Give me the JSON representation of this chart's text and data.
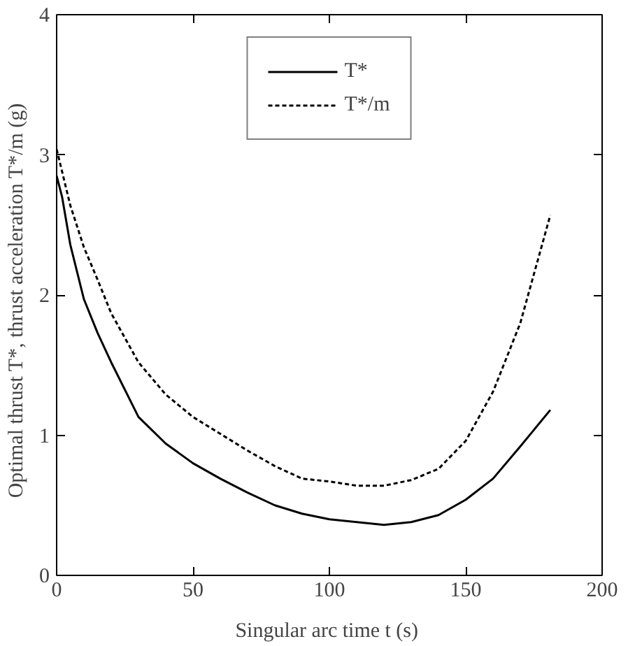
{
  "chart_data": {
    "type": "line",
    "xlabel": "Singular arc time  t (s)",
    "ylabel": "Optimal thrust  T*, thrust acceleration T*/m  (g)",
    "xlim": [
      0,
      200
    ],
    "xticks": [
      0,
      50,
      100,
      150,
      200
    ],
    "ylim": [
      0,
      4
    ],
    "yticks": [
      0,
      1,
      2,
      3,
      4
    ],
    "grid": false,
    "legend": "top",
    "marker": "none",
    "series": [
      {
        "name": "T*",
        "color": "#000000",
        "line_style": "solid",
        "x": [
          0,
          2,
          5,
          10,
          15,
          20,
          30,
          40,
          50,
          60,
          70,
          80,
          90,
          100,
          110,
          120,
          130,
          140,
          150,
          160,
          170,
          181
        ],
        "values": [
          2.85,
          2.7,
          2.36,
          1.97,
          1.73,
          1.52,
          1.13,
          0.94,
          0.8,
          0.69,
          0.59,
          0.5,
          0.44,
          0.4,
          0.38,
          0.36,
          0.38,
          0.43,
          0.54,
          0.69,
          0.92,
          1.18
        ]
      },
      {
        "name": "T*/m",
        "color": "#000000",
        "line_style": "dashed",
        "x": [
          0,
          5,
          10,
          15,
          20,
          30,
          40,
          50,
          60,
          70,
          80,
          90,
          100,
          110,
          120,
          130,
          140,
          150,
          160,
          170,
          181
        ],
        "values": [
          3.04,
          2.64,
          2.34,
          2.11,
          1.87,
          1.52,
          1.29,
          1.13,
          1.01,
          0.89,
          0.78,
          0.69,
          0.67,
          0.64,
          0.64,
          0.68,
          0.76,
          0.96,
          1.31,
          1.8,
          2.57
        ]
      }
    ]
  }
}
